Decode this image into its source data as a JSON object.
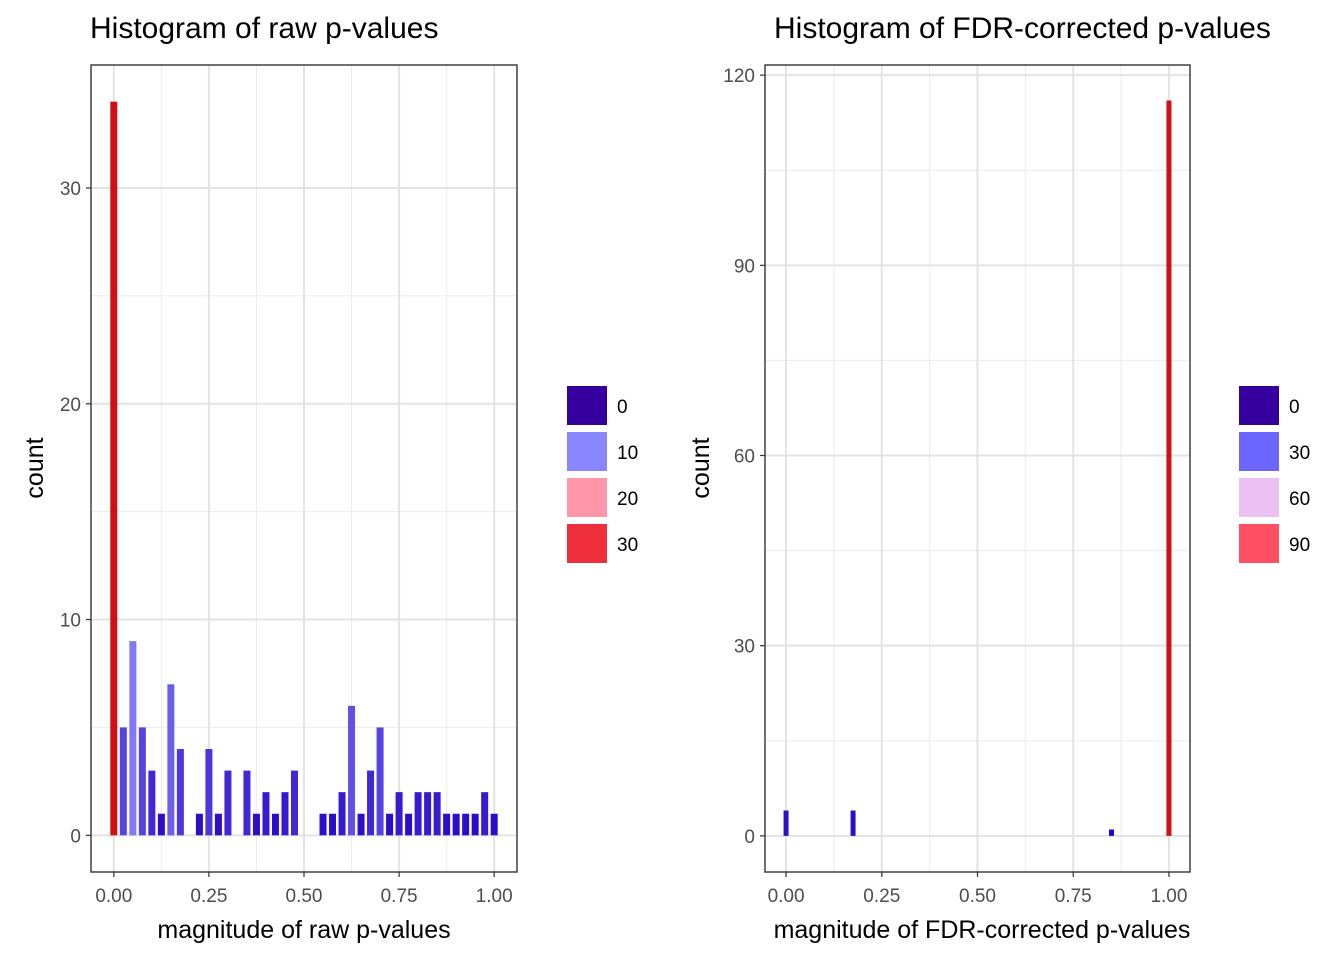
{
  "chart_data": [
    {
      "type": "bar",
      "title": "Histogram of raw p-values",
      "xlabel": "magnitude of raw p-values",
      "ylabel": "count",
      "xlim": [
        -0.06,
        1.06
      ],
      "ylim": [
        -1.7,
        35.7
      ],
      "x_ticks": [
        0,
        0.25,
        0.5,
        0.75,
        1
      ],
      "x_tick_labels": [
        "0.00",
        "0.25",
        "0.50",
        "0.75",
        "1.00"
      ],
      "y_ticks": [
        0,
        10,
        20,
        30
      ],
      "y_tick_labels": [
        "0",
        "10",
        "20",
        "30"
      ],
      "grid": true,
      "bin_width": 0.025,
      "x": [
        0,
        0.025,
        0.05,
        0.075,
        0.1,
        0.125,
        0.15,
        0.175,
        0.2,
        0.225,
        0.25,
        0.275,
        0.3,
        0.325,
        0.35,
        0.375,
        0.4,
        0.425,
        0.45,
        0.475,
        0.5,
        0.525,
        0.55,
        0.575,
        0.6,
        0.625,
        0.65,
        0.675,
        0.7,
        0.725,
        0.75,
        0.775,
        0.8,
        0.825,
        0.85,
        0.875,
        0.9,
        0.925,
        0.95,
        0.975,
        1
      ],
      "values": [
        34,
        5,
        9,
        5,
        3,
        1,
        7,
        4,
        0,
        1,
        4,
        1,
        3,
        0,
        3,
        1,
        2,
        1,
        2,
        3,
        0,
        0,
        1,
        1,
        2,
        6,
        1,
        3,
        5,
        1,
        2,
        1,
        2,
        2,
        2,
        1,
        1,
        1,
        1,
        2,
        1
      ],
      "legend": {
        "placement": "right",
        "entries": [
          "0",
          "10",
          "20",
          "30"
        ],
        "colors": [
          "#36009e",
          "#8a86ff",
          "#ff96aa",
          "#ef2e3b"
        ]
      },
      "color_scale": {
        "stops": [
          0,
          10,
          20,
          30,
          34
        ],
        "colors": [
          "#2200c4",
          "#8a86ff",
          "#ff96aa",
          "#ef2e3b",
          "#d00f12"
        ]
      }
    },
    {
      "type": "bar",
      "title": "Histogram of FDR-corrected p-values",
      "xlabel": "magnitude of FDR-corrected p-values",
      "ylabel": "count",
      "xlim": [
        -0.055,
        1.055
      ],
      "ylim": [
        -5.7,
        121.6
      ],
      "x_ticks": [
        0,
        0.25,
        0.5,
        0.75,
        1
      ],
      "x_tick_labels": [
        "0.00",
        "0.25",
        "0.50",
        "0.75",
        "1.00"
      ],
      "y_ticks": [
        0,
        30,
        60,
        90,
        120
      ],
      "y_tick_labels": [
        "0",
        "30",
        "60",
        "90",
        "120"
      ],
      "grid": true,
      "bin_width": 0.0125,
      "x": [
        0,
        0.175,
        0.85,
        1
      ],
      "values": [
        4,
        4,
        1,
        116
      ],
      "legend": {
        "placement": "right",
        "entries": [
          "0",
          "30",
          "60",
          "90"
        ],
        "colors": [
          "#36009e",
          "#6b66ff",
          "#ecc0f2",
          "#ff4f63"
        ]
      },
      "color_scale": {
        "stops": [
          0,
          30,
          60,
          90,
          116
        ],
        "colors": [
          "#2200c4",
          "#6b66ff",
          "#ecc0f2",
          "#ff4f63",
          "#d00f12"
        ]
      }
    }
  ]
}
